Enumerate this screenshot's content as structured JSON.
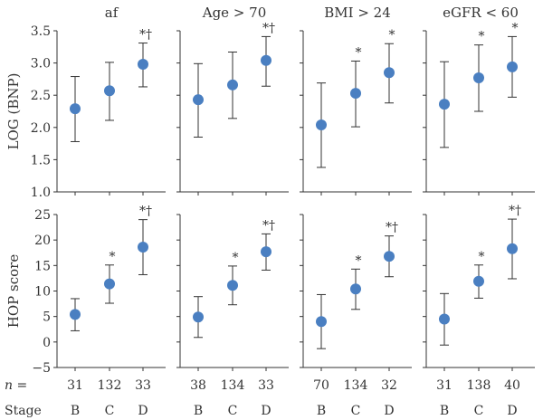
{
  "colors": {
    "marker": "#4a7fc1",
    "axis": "#333333",
    "errorbar": "#333333",
    "text": "#333333"
  },
  "footer": {
    "n_label": "n =",
    "stage_label": "Stage"
  },
  "chart_data": [
    {
      "type": "scatter",
      "row": 0,
      "col": 0,
      "title": "af",
      "ylabel": "LOG (BNP)",
      "ylim": [
        1.0,
        3.5
      ],
      "yticks": [
        "1.0",
        "1.5",
        "2.0",
        "2.5",
        "3.0",
        "3.5"
      ],
      "categories": [
        "B",
        "C",
        "D"
      ],
      "n": [
        "31",
        "132",
        "33"
      ],
      "values": [
        2.29,
        2.57,
        2.98
      ],
      "lower": [
        1.78,
        2.11,
        2.63
      ],
      "upper": [
        2.79,
        3.01,
        3.31
      ],
      "markers": [
        "",
        "",
        "*†"
      ]
    },
    {
      "type": "scatter",
      "row": 0,
      "col": 1,
      "title": "Age > 70",
      "ylabel": "",
      "ylim": [
        1.0,
        3.5
      ],
      "yticks": [],
      "categories": [
        "B",
        "C",
        "D"
      ],
      "n": [
        "38",
        "134",
        "33"
      ],
      "values": [
        2.43,
        2.66,
        3.04
      ],
      "lower": [
        1.85,
        2.14,
        2.64
      ],
      "upper": [
        2.99,
        3.17,
        3.41
      ],
      "markers": [
        "",
        "",
        "*†"
      ]
    },
    {
      "type": "scatter",
      "row": 0,
      "col": 2,
      "title": "BMI > 24",
      "ylabel": "",
      "ylim": [
        1.0,
        3.5
      ],
      "yticks": [],
      "categories": [
        "B",
        "C",
        "D"
      ],
      "n": [
        "70",
        "134",
        "32"
      ],
      "values": [
        2.04,
        2.53,
        2.85
      ],
      "lower": [
        1.38,
        2.01,
        2.38
      ],
      "upper": [
        2.69,
        3.03,
        3.3
      ],
      "markers": [
        "",
        "*",
        "*"
      ]
    },
    {
      "type": "scatter",
      "row": 0,
      "col": 3,
      "title": "eGFR < 60",
      "ylabel": "",
      "ylim": [
        1.0,
        3.5
      ],
      "yticks": [],
      "categories": [
        "B",
        "C",
        "D"
      ],
      "n": [
        "31",
        "138",
        "40"
      ],
      "values": [
        2.36,
        2.77,
        2.94
      ],
      "lower": [
        1.69,
        2.25,
        2.47
      ],
      "upper": [
        3.02,
        3.28,
        3.41
      ],
      "markers": [
        "",
        "*",
        "*"
      ]
    },
    {
      "type": "scatter",
      "row": 1,
      "col": 0,
      "title": "",
      "ylabel": "HOP score",
      "ylim": [
        -5,
        25
      ],
      "yticks": [
        "−5",
        "0",
        "5",
        "10",
        "15",
        "20",
        "25"
      ],
      "categories": [
        "B",
        "C",
        "D"
      ],
      "n": [
        "31",
        "132",
        "33"
      ],
      "values": [
        5.4,
        11.4,
        18.6
      ],
      "lower": [
        2.2,
        7.6,
        13.2
      ],
      "upper": [
        8.5,
        15.1,
        24.0
      ],
      "markers": [
        "",
        "*",
        "*†"
      ]
    },
    {
      "type": "scatter",
      "row": 1,
      "col": 1,
      "title": "",
      "ylabel": "",
      "ylim": [
        -5,
        25
      ],
      "yticks": [],
      "categories": [
        "B",
        "C",
        "D"
      ],
      "n": [
        "38",
        "134",
        "33"
      ],
      "values": [
        4.9,
        11.1,
        17.7
      ],
      "lower": [
        0.9,
        7.3,
        14.1
      ],
      "upper": [
        8.9,
        14.9,
        21.2
      ],
      "markers": [
        "",
        "*",
        "*†"
      ]
    },
    {
      "type": "scatter",
      "row": 1,
      "col": 2,
      "title": "",
      "ylabel": "",
      "ylim": [
        -5,
        25
      ],
      "yticks": [],
      "categories": [
        "B",
        "C",
        "D"
      ],
      "n": [
        "70",
        "134",
        "32"
      ],
      "values": [
        4.0,
        10.4,
        16.8
      ],
      "lower": [
        -1.3,
        6.4,
        12.8
      ],
      "upper": [
        9.3,
        14.3,
        20.8
      ],
      "markers": [
        "",
        "*",
        "*†"
      ]
    },
    {
      "type": "scatter",
      "row": 1,
      "col": 3,
      "title": "",
      "ylabel": "",
      "ylim": [
        -5,
        25
      ],
      "yticks": [],
      "categories": [
        "B",
        "C",
        "D"
      ],
      "n": [
        "31",
        "138",
        "40"
      ],
      "values": [
        4.5,
        11.9,
        18.3
      ],
      "lower": [
        -0.6,
        8.6,
        12.4
      ],
      "upper": [
        9.5,
        15.1,
        24.1
      ],
      "markers": [
        "",
        "*",
        "*†"
      ]
    }
  ]
}
